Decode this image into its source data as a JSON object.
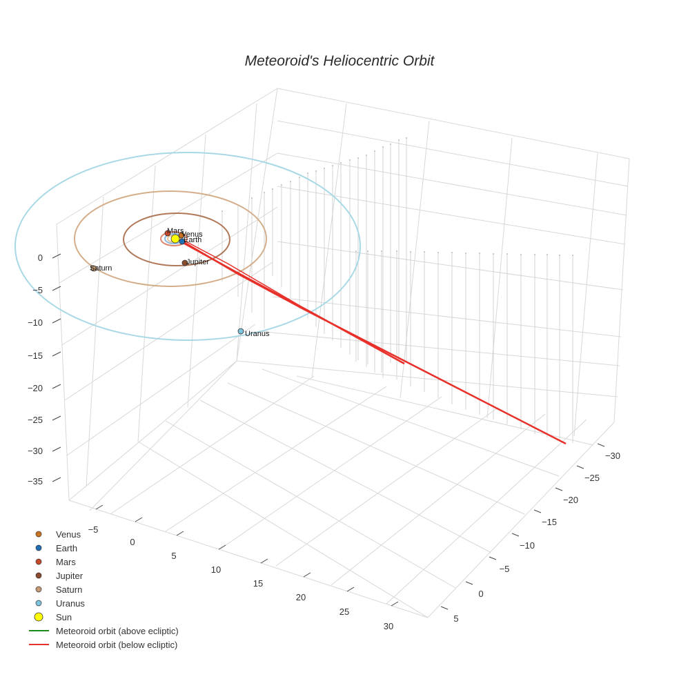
{
  "chart_data": {
    "type": "scatter3d",
    "title": "Meteoroid's Heliocentric Orbit",
    "axes": {
      "x": {
        "ticks": [
          "−5",
          "0",
          "5",
          "10",
          "15",
          "20",
          "25",
          "30"
        ]
      },
      "y": {
        "ticks": [
          "−30",
          "−25",
          "−20",
          "−15",
          "−10",
          "−5",
          "0",
          "5"
        ]
      },
      "z": {
        "ticks": [
          "0",
          "−5",
          "−10",
          "−15",
          "−20",
          "−25",
          "−30",
          "−35"
        ]
      }
    },
    "planets": [
      {
        "name": "Venus",
        "label": "Venus",
        "color": "#c8731f",
        "orbit_color": "#e8c49a",
        "orbit_radius_au": 0.72
      },
      {
        "name": "Earth",
        "label": "Earth",
        "color": "#1f6fb5",
        "orbit_color": "#8cb8dd",
        "orbit_radius_au": 1.0
      },
      {
        "name": "Mars",
        "label": "Mars",
        "color": "#c8482a",
        "orbit_color": "#e0866e",
        "orbit_radius_au": 1.52
      },
      {
        "name": "Jupiter",
        "label": "Jupiter",
        "color": "#8b4c2e",
        "orbit_color": "#b07858",
        "orbit_radius_au": 5.2
      },
      {
        "name": "Saturn",
        "label": "Saturn",
        "color": "#c49a72",
        "orbit_color": "#d4ae8a",
        "orbit_radius_au": 9.5
      },
      {
        "name": "Uranus",
        "label": "Uranus",
        "color": "#7fc4de",
        "orbit_color": "#a8d8e6",
        "orbit_radius_au": 19.2
      }
    ],
    "sun": {
      "name": "Sun",
      "color": "#ffff00"
    },
    "legend": [
      {
        "label": "Venus",
        "kind": "dot",
        "color": "#c8731f"
      },
      {
        "label": "Earth",
        "kind": "dot",
        "color": "#1f6fb5"
      },
      {
        "label": "Mars",
        "kind": "dot",
        "color": "#c8482a"
      },
      {
        "label": "Jupiter",
        "kind": "dot",
        "color": "#8b4c2e"
      },
      {
        "label": "Saturn",
        "kind": "dot",
        "color": "#c49a72"
      },
      {
        "label": "Uranus",
        "kind": "dot",
        "color": "#7fc4de"
      },
      {
        "label": "Sun",
        "kind": "sun",
        "color": "#ffff00"
      },
      {
        "label": "Meteoroid orbit (above ecliptic)",
        "kind": "line",
        "color": "#1a8a1a"
      },
      {
        "label": "Meteoroid orbit (below ecliptic)",
        "kind": "line",
        "color": "#e8302a"
      }
    ],
    "series": [
      {
        "name": "Meteoroid orbit (above ecliptic)",
        "color": "#1a8a1a"
      },
      {
        "name": "Meteoroid orbit (below ecliptic)",
        "color": "#e8302a"
      }
    ],
    "legend_position": "bottom-left"
  }
}
